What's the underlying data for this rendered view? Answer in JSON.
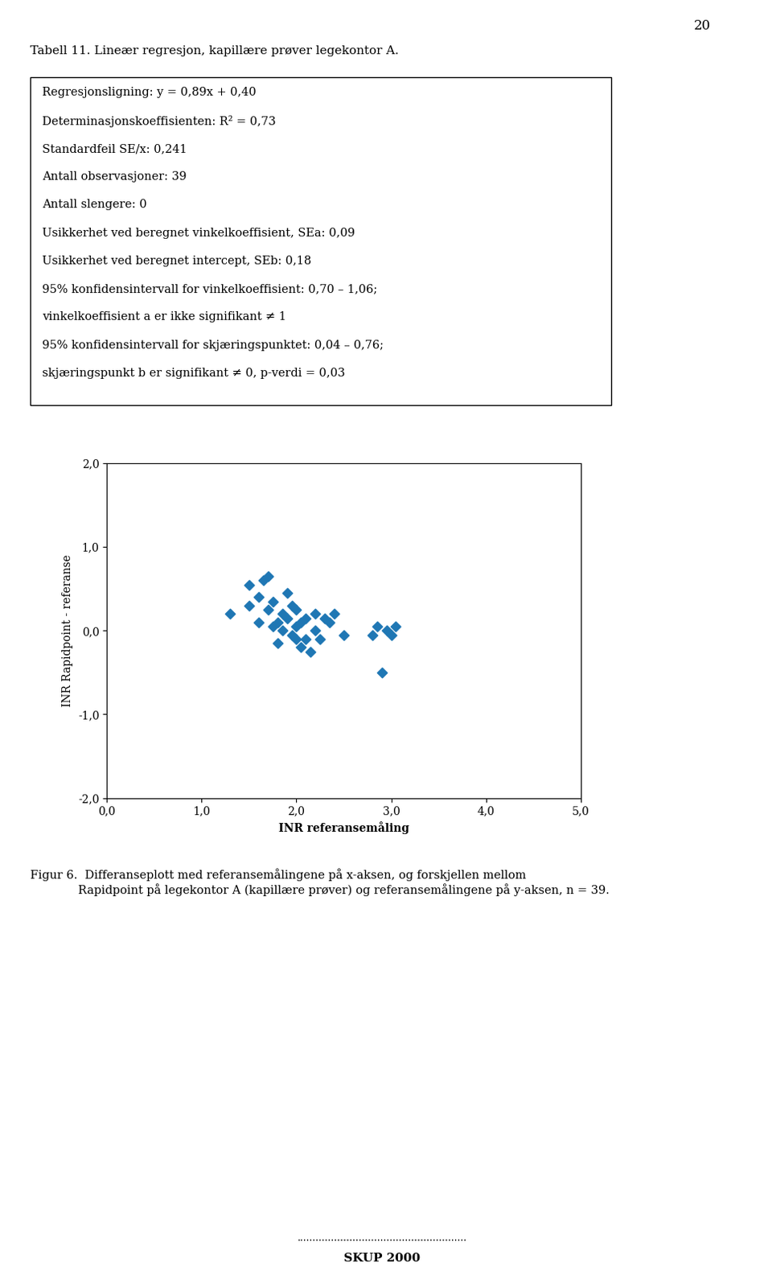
{
  "chart_data": {
    "type": "scatter",
    "page_number": "20",
    "title": "Tabell 11. Lineær regresjon, kapillære prøver legekontor A.",
    "text_box": [
      "Regresjonsligning: y = 0,89x + 0,40",
      "Determinasjonskoeffisienten: R² = 0,73",
      "Standardfeil SE/x: 0,241",
      "Antall observasjoner: 39",
      "Antall slengere: 0",
      "Usikkerhet ved beregnet vinkelkoeffisient, SEa: 0,09",
      "Usikkerhet ved beregnet intercept, SEb: 0,18",
      "95% konfidensintervall for vinkelkoeffisient: 0,70 – 1,06;",
      "vinkelkoeffisient a er ikke signifikant ≠ 1",
      "95% konfidensintervall for skjæringspunktet: 0,04 – 0,76;",
      "skjæringspunkt b er signifikant ≠ 0, p-verdi = 0,03"
    ],
    "x": [
      1.3,
      1.5,
      1.5,
      1.6,
      1.6,
      1.65,
      1.7,
      1.7,
      1.75,
      1.75,
      1.8,
      1.8,
      1.85,
      1.85,
      1.9,
      1.9,
      1.95,
      1.95,
      2.0,
      2.0,
      2.0,
      2.05,
      2.05,
      2.1,
      2.1,
      2.15,
      2.2,
      2.2,
      2.25,
      2.3,
      2.35,
      2.4,
      2.5,
      2.8,
      2.85,
      2.9,
      2.95,
      3.0,
      3.05
    ],
    "values": [
      0.2,
      0.3,
      0.55,
      0.1,
      0.4,
      0.6,
      0.25,
      0.65,
      0.05,
      0.35,
      -0.15,
      0.1,
      0.0,
      0.2,
      0.15,
      0.45,
      -0.05,
      0.3,
      -0.1,
      0.05,
      0.25,
      0.1,
      -0.2,
      -0.1,
      0.15,
      -0.25,
      0.2,
      0.0,
      -0.1,
      0.15,
      0.1,
      0.2,
      -0.05,
      -0.05,
      0.05,
      -0.5,
      0.0,
      -0.05,
      0.05
    ],
    "marker": "diamond",
    "x_label": "INR referansemåling",
    "y_label": "INR Rapidpoint - referanse",
    "xlim": [
      0.0,
      5.0
    ],
    "ylim": [
      -2.0,
      2.0
    ],
    "xticks": [
      {
        "value": 0.0,
        "label": "0,0"
      },
      {
        "value": 1.0,
        "label": "1,0"
      },
      {
        "value": 2.0,
        "label": "2,0"
      },
      {
        "value": 3.0,
        "label": "3,0"
      },
      {
        "value": 4.0,
        "label": "4,0"
      },
      {
        "value": 5.0,
        "label": "5,0"
      }
    ],
    "yticks": [
      {
        "value": -2.0,
        "label": "-2,0"
      },
      {
        "value": -1.0,
        "label": "-1,0"
      },
      {
        "value": 0.0,
        "label": "0,0"
      },
      {
        "value": 1.0,
        "label": "1,0"
      },
      {
        "value": 2.0,
        "label": "2,0"
      }
    ],
    "caption": "Figur 6.  Differanseplott med referansemålingene på x-aksen, og forskjellen mellom\n             Rapidpoint på legekontor A (kapillære prøver) og referansemålingene på y-aksen, n = 39.",
    "footer": [
      ".......................................................",
      "SKUP 2000"
    ]
  }
}
